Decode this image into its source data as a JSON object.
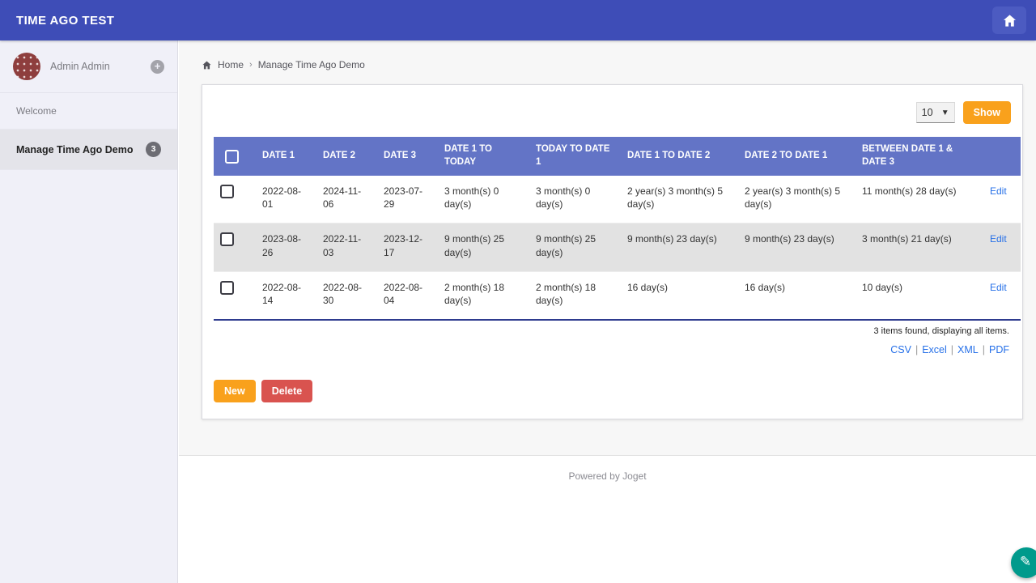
{
  "navbar": {
    "title": "TIME AGO TEST"
  },
  "sidebar": {
    "user_name": "Admin Admin",
    "items": [
      {
        "label": "Welcome"
      },
      {
        "label": "Manage Time Ago Demo",
        "badge": "3"
      }
    ]
  },
  "breadcrumb": {
    "home": "Home",
    "current": "Manage Time Ago Demo"
  },
  "list": {
    "page_size": "10",
    "show_label": "Show",
    "summary": "3 items found, displaying all items.",
    "export_links": [
      "CSV",
      "Excel",
      "XML",
      "PDF"
    ],
    "new_label": "New",
    "delete_label": "Delete"
  },
  "table": {
    "columns": [
      "DATE 1",
      "DATE 2",
      "DATE 3",
      "DATE 1 TO TODAY",
      "TODAY TO DATE 1",
      "DATE 1 TO DATE 2",
      "DATE 2 TO DATE 1",
      "BETWEEN DATE 1 & DATE 3"
    ],
    "edit_label": "Edit",
    "rows": [
      [
        "2022-08-01",
        "2024-11-06",
        "2023-07-29",
        "3 month(s) 0 day(s)",
        "3 month(s) 0 day(s)",
        "2 year(s) 3 month(s) 5 day(s)",
        "2 year(s) 3 month(s) 5 day(s)",
        "11 month(s) 28 day(s)"
      ],
      [
        "2023-08-26",
        "2022-11-03",
        "2023-12-17",
        "9 month(s) 25 day(s)",
        "9 month(s) 25 day(s)",
        "9 month(s) 23 day(s)",
        "9 month(s) 23 day(s)",
        "3 month(s) 21 day(s)"
      ],
      [
        "2022-08-14",
        "2022-08-30",
        "2022-08-04",
        "2 month(s) 18 day(s)",
        "2 month(s) 18 day(s)",
        "16 day(s)",
        "16 day(s)",
        "10 day(s)"
      ]
    ]
  },
  "footer": {
    "text": "Powered by Joget"
  },
  "colors": {
    "navbar": "#3e4db7",
    "table_header": "#6374c6",
    "accent_orange": "#f9a11c",
    "accent_red": "#d9534f",
    "fab_teal": "#009a8c",
    "link_blue": "#2670e8",
    "table_bottom_border": "#2e3b8f"
  }
}
